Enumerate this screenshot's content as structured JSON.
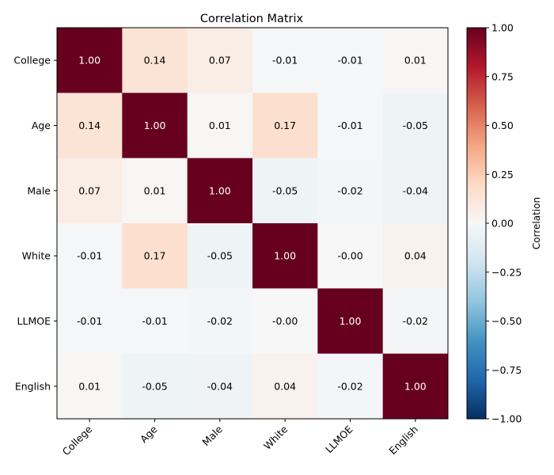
{
  "chart_data": {
    "type": "heatmap",
    "title": "Correlation Matrix",
    "xlabel": "",
    "ylabel": "",
    "categories": [
      "College",
      "Age",
      "Male",
      "White",
      "LLMOE",
      "English"
    ],
    "values": [
      [
        1.0,
        0.14,
        0.07,
        -0.01,
        -0.01,
        0.01
      ],
      [
        0.14,
        1.0,
        0.01,
        0.17,
        -0.01,
        -0.05
      ],
      [
        0.07,
        0.01,
        1.0,
        -0.05,
        -0.02,
        -0.04
      ],
      [
        -0.01,
        0.17,
        -0.05,
        1.0,
        -0.0,
        0.04
      ],
      [
        -0.01,
        -0.01,
        -0.02,
        -0.0,
        1.0,
        -0.02
      ],
      [
        0.01,
        -0.05,
        -0.04,
        0.04,
        -0.02,
        1.0
      ]
    ],
    "cell_labels": [
      [
        "1.00",
        "0.14",
        "0.07",
        "-0.01",
        "-0.01",
        "0.01"
      ],
      [
        "0.14",
        "1.00",
        "0.01",
        "0.17",
        "-0.01",
        "-0.05"
      ],
      [
        "0.07",
        "0.01",
        "1.00",
        "-0.05",
        "-0.02",
        "-0.04"
      ],
      [
        "-0.01",
        "0.17",
        "-0.05",
        "1.00",
        "-0.00",
        "0.04"
      ],
      [
        "-0.01",
        "-0.01",
        "-0.02",
        "-0.00",
        "1.00",
        "-0.02"
      ],
      [
        "0.01",
        "-0.05",
        "-0.04",
        "0.04",
        "-0.02",
        "1.00"
      ]
    ],
    "colorbar": {
      "label": "Correlation",
      "range": [
        -1,
        1
      ],
      "ticks": [
        1.0,
        0.75,
        0.5,
        0.25,
        0.0,
        -0.25,
        -0.5,
        -0.75,
        -1.0
      ],
      "tick_labels": [
        "1.00",
        "0.75",
        "0.50",
        "0.25",
        "0.00",
        "−0.25",
        "−0.50",
        "−0.75",
        "−1.00"
      ],
      "colormap": "RdBu_r"
    }
  }
}
